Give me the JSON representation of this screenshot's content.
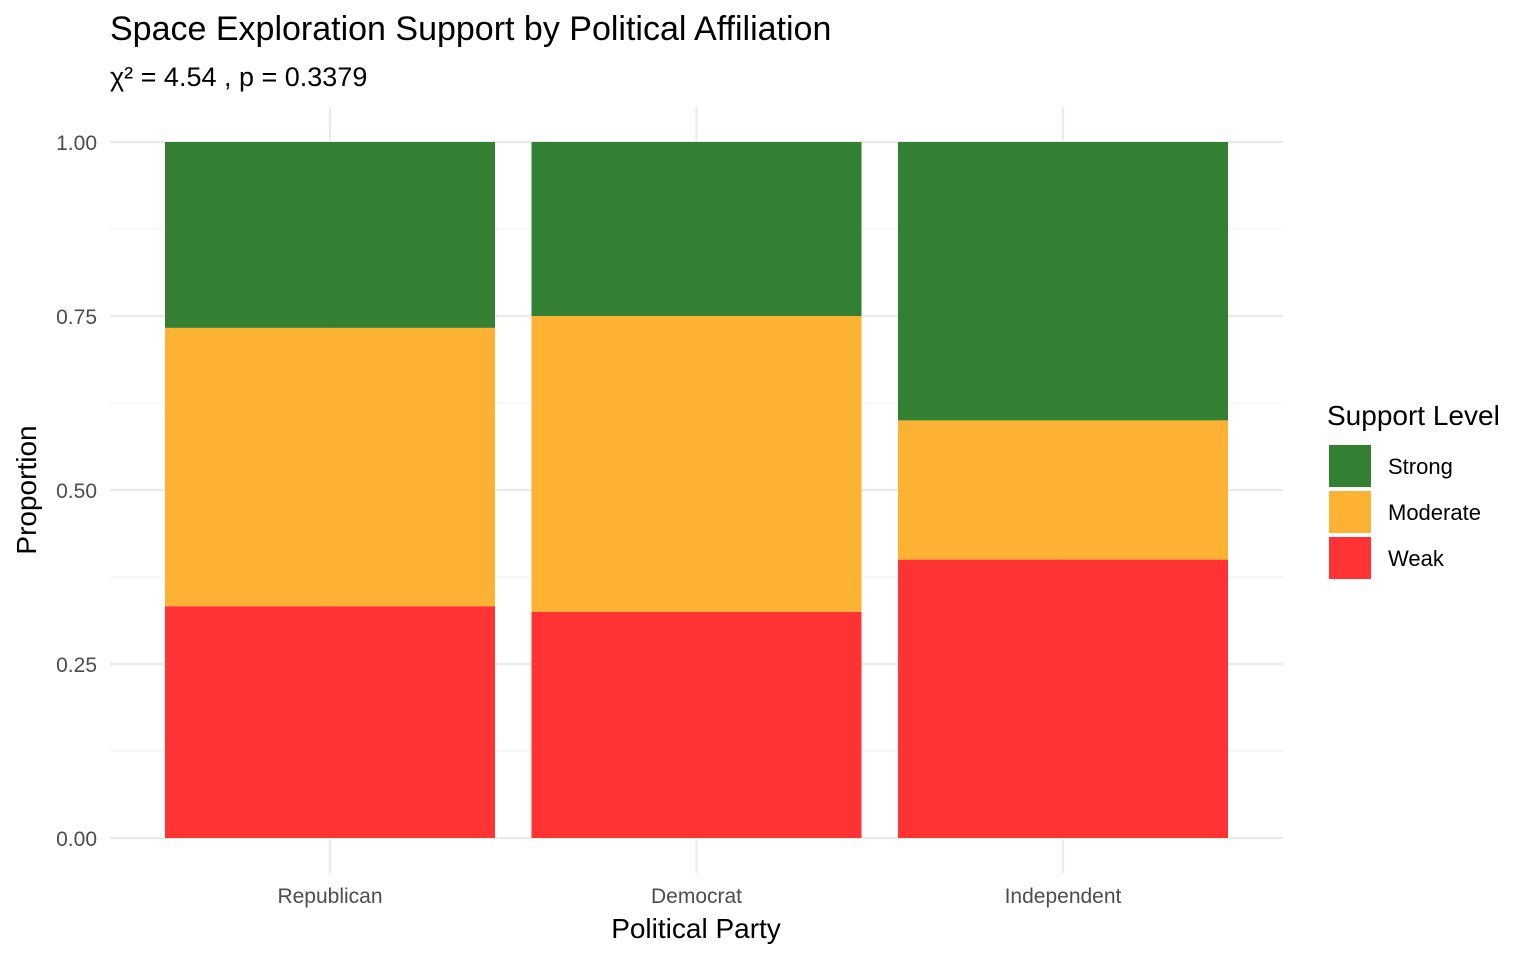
{
  "chart_data": {
    "type": "bar",
    "stacked": true,
    "title": "Space Exploration Support by Political Affiliation",
    "subtitle": "χ² = 4.54 , p = 0.3379",
    "xlabel": "Political Party",
    "ylabel": "Proportion",
    "ylim": [
      0,
      1
    ],
    "yticks": [
      "0.00",
      "0.25",
      "0.50",
      "0.75",
      "1.00"
    ],
    "categories": [
      "Republican",
      "Democrat",
      "Independent"
    ],
    "series": [
      {
        "name": "Weak",
        "color": "#ff3333",
        "values": [
          0.333,
          0.325,
          0.4
        ]
      },
      {
        "name": "Moderate",
        "color": "#fdb233",
        "values": [
          0.4,
          0.425,
          0.2
        ]
      },
      {
        "name": "Strong",
        "color": "#338033",
        "values": [
          0.267,
          0.25,
          0.4
        ]
      }
    ],
    "legend": {
      "title": "Support Level",
      "order": [
        "Strong",
        "Moderate",
        "Weak"
      ],
      "placement": "right"
    },
    "grid": true
  }
}
